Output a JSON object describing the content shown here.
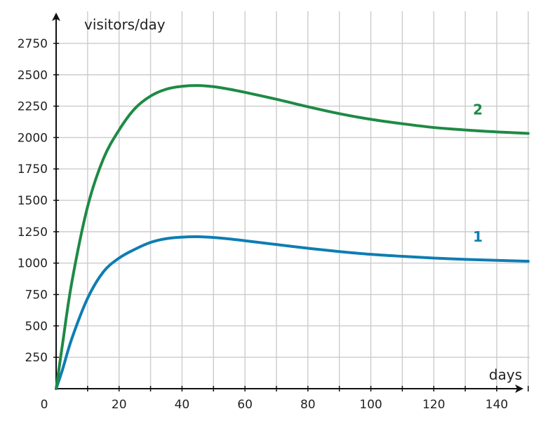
{
  "chart_data": {
    "type": "line",
    "xlabel": "days",
    "ylabel": "visitors/day",
    "origin_label": "0",
    "xlim": [
      0,
      150
    ],
    "ylim": [
      0,
      2900
    ],
    "x_ticks": [
      20,
      40,
      60,
      80,
      100,
      120,
      140
    ],
    "y_ticks": [
      250,
      500,
      750,
      1000,
      1250,
      1500,
      1750,
      2000,
      2250,
      2500,
      2750
    ],
    "x_grid_step": 10,
    "grid": true,
    "axis_color": "#111111",
    "grid_color": "#cccccc",
    "series": [
      {
        "label": "1",
        "color": "#0e7db3",
        "x": [
          0,
          2,
          5,
          10,
          15,
          20,
          25,
          30,
          35,
          40,
          45,
          50,
          55,
          60,
          70,
          80,
          90,
          100,
          110,
          120,
          130,
          140,
          150
        ],
        "y": [
          0,
          150,
          400,
          720,
          930,
          1040,
          1110,
          1165,
          1195,
          1207,
          1210,
          1204,
          1193,
          1178,
          1148,
          1118,
          1092,
          1070,
          1054,
          1040,
          1030,
          1022,
          1015
        ]
      },
      {
        "label": "2",
        "color": "#1e8a44",
        "x": [
          0,
          2,
          5,
          10,
          15,
          20,
          25,
          30,
          35,
          40,
          45,
          50,
          55,
          60,
          70,
          80,
          90,
          100,
          110,
          120,
          130,
          140,
          150
        ],
        "y": [
          0,
          350,
          850,
          1450,
          1830,
          2060,
          2230,
          2330,
          2385,
          2408,
          2414,
          2405,
          2385,
          2360,
          2305,
          2245,
          2190,
          2145,
          2110,
          2080,
          2060,
          2045,
          2033
        ]
      }
    ]
  }
}
